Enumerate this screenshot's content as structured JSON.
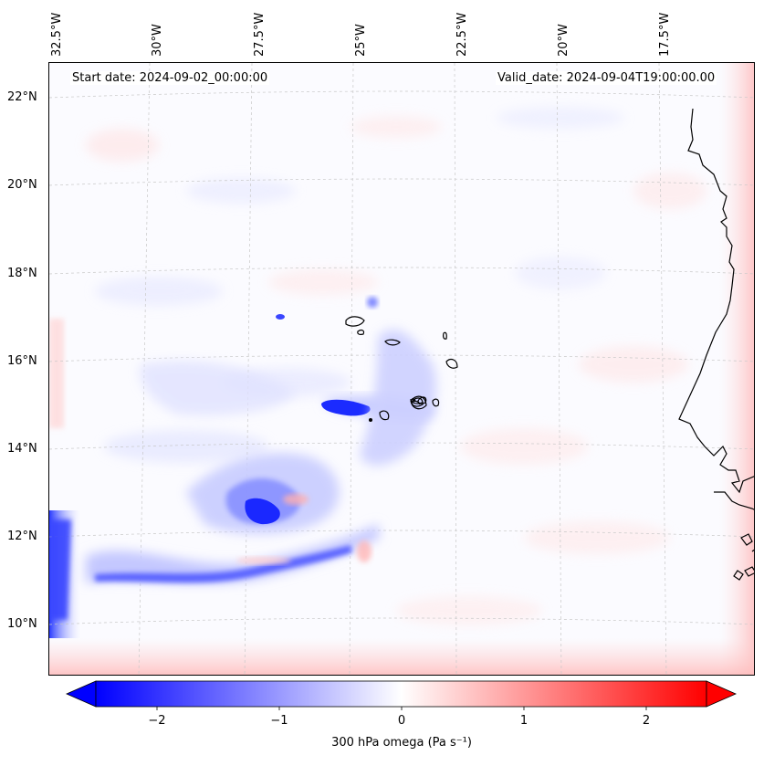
{
  "map": {
    "header_left": "Start date: 2024-09-02_00:00:00",
    "header_right": "Valid_date: 2024-09-04T19:00:00.00",
    "lon_labels": [
      "32.5°W",
      "30°W",
      "27.5°W",
      "25°W",
      "22.5°W",
      "20°W",
      "17.5°W"
    ],
    "lat_labels": [
      "22°N",
      "20°N",
      "18°N",
      "16°N",
      "14°N",
      "12°N",
      "10°N"
    ],
    "lon_range": [
      -32.5,
      -15.3
    ],
    "lat_range": [
      8.8,
      22.8
    ],
    "field": "300 hPa omega",
    "colormap": "bwr",
    "colors": {
      "negative": "#0000ff",
      "positive": "#ff0000",
      "neutral": "#ffffff",
      "coastline": "#000000"
    }
  },
  "colorbar": {
    "ticks": [
      "−2",
      "−1",
      "0",
      "1",
      "2"
    ],
    "tick_values": [
      -2,
      -1,
      0,
      1,
      2
    ],
    "range": [
      -2.5,
      2.5
    ],
    "label": "300 hPa omega (Pa s⁻¹)",
    "extend": "both"
  }
}
